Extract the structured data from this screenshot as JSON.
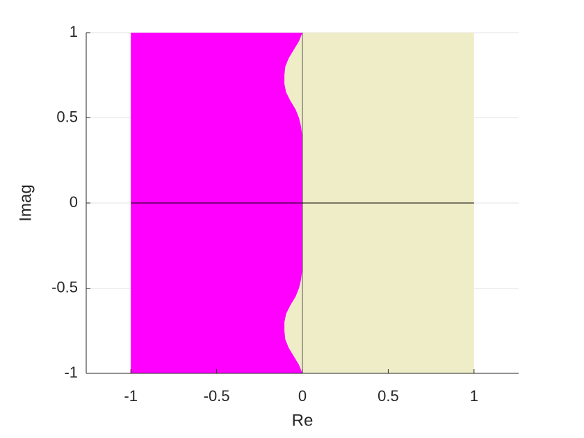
{
  "chart_data": {
    "type": "region",
    "xlabel": "Re",
    "ylabel": "Imag",
    "xlim": [
      -1.26,
      1.26
    ],
    "ylim": [
      -1,
      1
    ],
    "xticks": [
      -1,
      -0.5,
      0,
      0.5,
      1
    ],
    "yticks": [
      -1,
      -0.5,
      0,
      0.5,
      1
    ],
    "ygrid": true,
    "series": [
      {
        "color": "#efedc8",
        "x": [
          0,
          -0.02,
          -0.05,
          -0.08,
          -0.1,
          -0.105,
          -0.105,
          -0.095,
          -0.07,
          -0.04,
          -0.02,
          -0.008,
          -0.002,
          0,
          0,
          0,
          -0.002,
          -0.008,
          -0.02,
          -0.04,
          -0.07,
          -0.095,
          -0.105,
          -0.105,
          -0.1,
          -0.08,
          -0.05,
          -0.02,
          0,
          1,
          1
        ],
        "y": [
          1,
          0.95,
          0.9,
          0.85,
          0.8,
          0.75,
          0.7,
          0.65,
          0.6,
          0.55,
          0.5,
          0.45,
          0.4,
          0.3,
          0,
          -0.3,
          -0.4,
          -0.45,
          -0.5,
          -0.55,
          -0.6,
          -0.65,
          -0.7,
          -0.75,
          -0.8,
          -0.85,
          -0.9,
          -0.95,
          -1,
          -1,
          1
        ]
      },
      {
        "color": "#ff00ff",
        "x": [
          0,
          -0.02,
          -0.05,
          -0.08,
          -0.1,
          -0.105,
          -0.105,
          -0.095,
          -0.07,
          -0.04,
          -0.02,
          -0.008,
          -0.002,
          0,
          0,
          0,
          -0.002,
          -0.008,
          -0.02,
          -0.04,
          -0.07,
          -0.095,
          -0.105,
          -0.105,
          -0.1,
          -0.08,
          -0.05,
          -0.02,
          0,
          -1,
          -1
        ],
        "y": [
          1,
          0.95,
          0.9,
          0.85,
          0.8,
          0.75,
          0.7,
          0.65,
          0.6,
          0.55,
          0.5,
          0.45,
          0.4,
          0.3,
          0,
          -0.3,
          -0.4,
          -0.45,
          -0.5,
          -0.55,
          -0.6,
          -0.65,
          -0.7,
          -0.75,
          -0.8,
          -0.85,
          -0.9,
          -0.95,
          -1,
          -1,
          1
        ]
      }
    ],
    "lines": [
      {
        "color": "#555555",
        "x": [
          0,
          0
        ],
        "y": [
          -1,
          1
        ]
      },
      {
        "color": "#000000",
        "x": [
          -1,
          1
        ],
        "y": [
          0,
          0
        ]
      }
    ]
  }
}
